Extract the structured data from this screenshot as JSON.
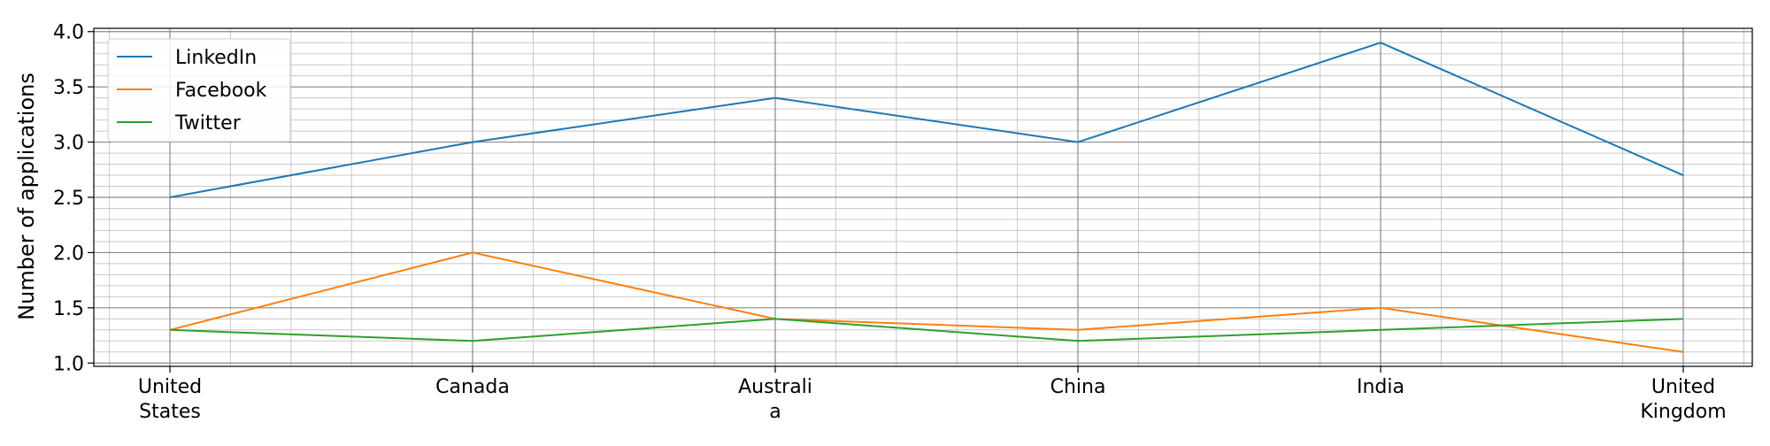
{
  "chart_data": {
    "type": "line",
    "title": "",
    "xlabel": "",
    "ylabel": "Number of applications",
    "categories": [
      [
        "United",
        "States"
      ],
      [
        "Canada"
      ],
      [
        "Australi",
        "a"
      ],
      [
        "China"
      ],
      [
        "India"
      ],
      [
        "United",
        "Kingdom"
      ]
    ],
    "series": [
      {
        "name": "LinkedIn",
        "color": "#1f77b4",
        "values": [
          2.5,
          3.0,
          3.4,
          3.0,
          3.9,
          2.7
        ]
      },
      {
        "name": "Facebook",
        "color": "#ff7f0e",
        "values": [
          1.3,
          2.0,
          1.4,
          1.3,
          1.5,
          1.1
        ]
      },
      {
        "name": "Twitter",
        "color": "#2ca02c",
        "values": [
          1.3,
          1.2,
          1.4,
          1.2,
          1.3,
          1.4
        ]
      }
    ],
    "ylim": [
      0.97,
      4.03
    ],
    "yticks": [
      "1.0",
      "1.5",
      "2.0",
      "2.5",
      "3.0",
      "3.5",
      "4.0"
    ],
    "grid": true,
    "minor_grid": true,
    "legend_position": "top-left"
  }
}
